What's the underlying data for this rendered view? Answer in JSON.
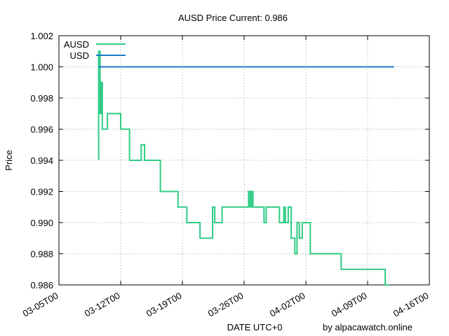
{
  "chart_data": {
    "type": "line",
    "title": "AUSD Price Current: 0.986",
    "xlabel": "DATE UTC+0",
    "ylabel": "Price",
    "credit": "by alpacawatch.online",
    "xlim": [
      "2024-03-05",
      "2024-04-16"
    ],
    "ylim": [
      0.986,
      1.002
    ],
    "x_ticks": [
      "2024-03-05",
      "2024-03-12",
      "2024-03-19",
      "2024-03-26",
      "2024-04-02",
      "2024-04-09",
      "2024-04-16"
    ],
    "x_tick_labels": [
      "03-05T00",
      "03-12T00",
      "03-19T00",
      "03-26T00",
      "04-02T00",
      "04-09T00",
      "04-16T00"
    ],
    "y_ticks": [
      0.986,
      0.988,
      0.99,
      0.992,
      0.994,
      0.996,
      0.998,
      1.0,
      1.002
    ],
    "y_tick_labels": [
      "0.986",
      "0.988",
      "0.990",
      "0.992",
      "0.994",
      "0.996",
      "0.998",
      "1.000",
      "1.002"
    ],
    "grid": true,
    "legend_position": "top-left",
    "series": [
      {
        "name": "AUSD",
        "color": "#2ecc85",
        "step": true,
        "points": [
          [
            "2024-03-09T12:00",
            0.994
          ],
          [
            "2024-03-09T12:00",
            1.001
          ],
          [
            "2024-03-09T16:00",
            0.997
          ],
          [
            "2024-03-09T19:00",
            0.999
          ],
          [
            "2024-03-09T22:00",
            0.996
          ],
          [
            "2024-03-10T12:00",
            0.997
          ],
          [
            "2024-03-12T00:00",
            0.996
          ],
          [
            "2024-03-12T22:00",
            0.996
          ],
          [
            "2024-03-13T00:00",
            0.994
          ],
          [
            "2024-03-14T08:00",
            0.995
          ],
          [
            "2024-03-14T17:00",
            0.994
          ],
          [
            "2024-03-16T12:00",
            0.992
          ],
          [
            "2024-03-18T12:00",
            0.991
          ],
          [
            "2024-03-19T12:00",
            0.99
          ],
          [
            "2024-03-21T00:00",
            0.989
          ],
          [
            "2024-03-22T10:00",
            0.991
          ],
          [
            "2024-03-22T16:00",
            0.99
          ],
          [
            "2024-03-23T12:00",
            0.991
          ],
          [
            "2024-03-26T12:00",
            0.992
          ],
          [
            "2024-03-26T16:00",
            0.991
          ],
          [
            "2024-03-26T20:00",
            0.992
          ],
          [
            "2024-03-27T00:00",
            0.991
          ],
          [
            "2024-03-28T06:00",
            0.99
          ],
          [
            "2024-03-28T12:00",
            0.991
          ],
          [
            "2024-03-30T00:00",
            0.99
          ],
          [
            "2024-03-30T12:00",
            0.991
          ],
          [
            "2024-03-30T16:00",
            0.99
          ],
          [
            "2024-03-31T00:00",
            0.991
          ],
          [
            "2024-03-31T08:00",
            0.989
          ],
          [
            "2024-03-31T18:00",
            0.988
          ],
          [
            "2024-04-01T00:00",
            0.99
          ],
          [
            "2024-04-01T06:00",
            0.989
          ],
          [
            "2024-04-01T14:00",
            0.99
          ],
          [
            "2024-04-02T12:00",
            0.988
          ],
          [
            "2024-04-06T00:00",
            0.987
          ],
          [
            "2024-04-11T00:00",
            0.986
          ],
          [
            "2024-04-11T12:00",
            0.986
          ]
        ]
      },
      {
        "name": "USD",
        "color": "#1f78c8",
        "step": false,
        "points": [
          [
            "2024-03-09T12:00",
            1.0
          ],
          [
            "2024-04-12T00:00",
            1.0
          ]
        ]
      }
    ]
  }
}
